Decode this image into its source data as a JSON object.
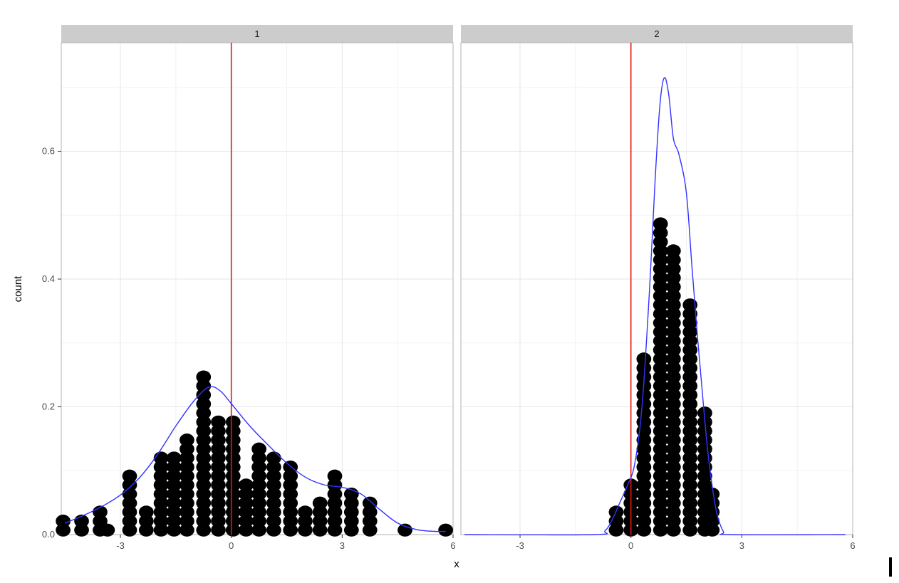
{
  "chart_data": {
    "type": "dotplot",
    "xlabel": "x",
    "ylabel": "count",
    "xlim": [
      -4.6,
      6.0
    ],
    "ylim": [
      0,
      0.77
    ],
    "x_ticks": [
      {
        "v": -3,
        "label": "-3"
      },
      {
        "v": 0,
        "label": "0"
      },
      {
        "v": 3,
        "label": "3"
      },
      {
        "v": 6,
        "label": "6"
      }
    ],
    "y_ticks": [
      {
        "v": 0.0,
        "label": "0.0"
      },
      {
        "v": 0.2,
        "label": "0.2"
      },
      {
        "v": 0.4,
        "label": "0.4"
      },
      {
        "v": 0.6,
        "label": "0.6"
      }
    ],
    "dot_step": 0.0141,
    "dot_width": 0.4,
    "vline_x": 0,
    "grid": true,
    "facets": [
      {
        "label": "1",
        "dot_stacks": [
          {
            "x": -4.55,
            "n": 2
          },
          {
            "x": -4.05,
            "n": 2
          },
          {
            "x": -3.55,
            "n": 3
          },
          {
            "x": -3.35,
            "n": 1
          },
          {
            "x": -2.75,
            "n": 7
          },
          {
            "x": -2.3,
            "n": 3
          },
          {
            "x": -1.9,
            "n": 9
          },
          {
            "x": -1.55,
            "n": 9
          },
          {
            "x": -1.2,
            "n": 11
          },
          {
            "x": -0.75,
            "n": 18
          },
          {
            "x": -0.35,
            "n": 13
          },
          {
            "x": 0.05,
            "n": 13
          },
          {
            "x": 0.4,
            "n": 6
          },
          {
            "x": 0.75,
            "n": 10
          },
          {
            "x": 1.15,
            "n": 9
          },
          {
            "x": 1.6,
            "n": 8
          },
          {
            "x": 2.0,
            "n": 3
          },
          {
            "x": 2.4,
            "n": 4
          },
          {
            "x": 2.8,
            "n": 7
          },
          {
            "x": 3.25,
            "n": 5
          },
          {
            "x": 3.75,
            "n": 4
          },
          {
            "x": 4.7,
            "n": 1
          },
          {
            "x": 5.8,
            "n": 1
          }
        ],
        "density": [
          [
            -4.5,
            0.018
          ],
          [
            -4.0,
            0.03
          ],
          [
            -3.5,
            0.044
          ],
          [
            -3.0,
            0.062
          ],
          [
            -2.5,
            0.088
          ],
          [
            -2.0,
            0.125
          ],
          [
            -1.5,
            0.17
          ],
          [
            -1.0,
            0.21
          ],
          [
            -0.6,
            0.231
          ],
          [
            -0.3,
            0.225
          ],
          [
            0.0,
            0.205
          ],
          [
            0.5,
            0.17
          ],
          [
            1.0,
            0.14
          ],
          [
            1.5,
            0.112
          ],
          [
            2.0,
            0.09
          ],
          [
            2.5,
            0.078
          ],
          [
            3.0,
            0.074
          ],
          [
            3.5,
            0.064
          ],
          [
            4.0,
            0.04
          ],
          [
            4.5,
            0.018
          ],
          [
            5.0,
            0.008
          ],
          [
            5.5,
            0.005
          ],
          [
            5.8,
            0.005
          ]
        ]
      },
      {
        "label": "2",
        "dot_stacks": [
          {
            "x": -0.4,
            "n": 3
          },
          {
            "x": 0.0,
            "n": 6
          },
          {
            "x": 0.35,
            "n": 20
          },
          {
            "x": 0.8,
            "n": 35
          },
          {
            "x": 1.15,
            "n": 32
          },
          {
            "x": 1.6,
            "n": 26
          },
          {
            "x": 2.0,
            "n": 14
          },
          {
            "x": 2.2,
            "n": 5
          }
        ],
        "density": [
          [
            -4.5,
            0.0
          ],
          [
            -1.0,
            0.0
          ],
          [
            -0.7,
            0.006
          ],
          [
            -0.5,
            0.024
          ],
          [
            -0.3,
            0.05
          ],
          [
            -0.1,
            0.076
          ],
          [
            0.1,
            0.11
          ],
          [
            0.3,
            0.2
          ],
          [
            0.5,
            0.38
          ],
          [
            0.65,
            0.55
          ],
          [
            0.78,
            0.67
          ],
          [
            0.9,
            0.715
          ],
          [
            1.02,
            0.69
          ],
          [
            1.15,
            0.62
          ],
          [
            1.3,
            0.595
          ],
          [
            1.5,
            0.535
          ],
          [
            1.65,
            0.42
          ],
          [
            1.8,
            0.31
          ],
          [
            1.95,
            0.21
          ],
          [
            2.1,
            0.12
          ],
          [
            2.3,
            0.04
          ],
          [
            2.5,
            0.005
          ],
          [
            2.7,
            0.0
          ],
          [
            5.8,
            0.0
          ]
        ]
      }
    ]
  },
  "colors": {
    "panel_border": "#b3b3b3",
    "grid_major": "#e6e6e6",
    "grid_minor": "#f2f2f2",
    "strip_bg": "#cccccc",
    "dots": "#000000",
    "density_line": "#3333ff",
    "vline": "#e0190f"
  }
}
